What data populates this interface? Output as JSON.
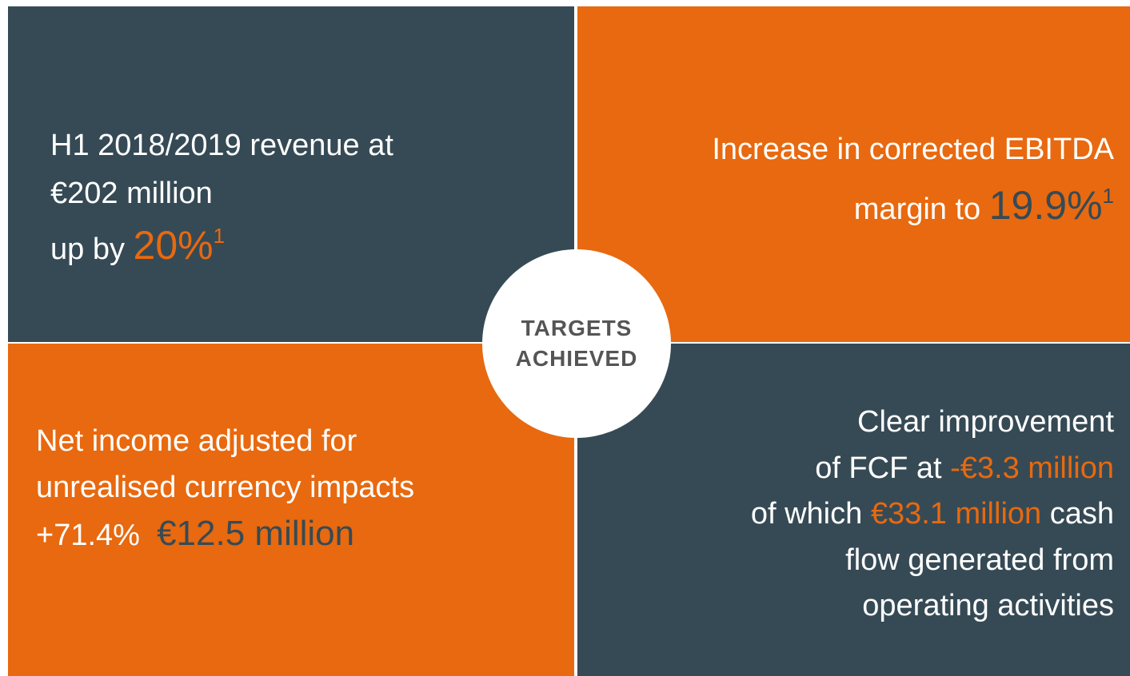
{
  "top_left": {
    "line1": "H1 2018/2019 revenue at",
    "line2": "€202 million",
    "line3": "up by",
    "highlight": "20%",
    "footnote": "1"
  },
  "top_right": {
    "line1": "Increase in corrected EBITDA",
    "line2": "margin to",
    "highlight": "19.9%",
    "footnote": "1"
  },
  "bottom_left": {
    "line1": "Net income adjusted for",
    "line2": "unrealised currency impacts",
    "line3": "+71.4%",
    "highlight": "€12.5 million"
  },
  "bottom_right": {
    "line1": "Clear improvement",
    "line2": "of FCF at",
    "highlight1": "-€3.3 million",
    "line3_start": "of which",
    "highlight2": "€33.1 million",
    "line3_end": "cash",
    "line4": "flow generated from",
    "line5": "operating activities"
  },
  "center": {
    "line1": "TARGETS",
    "line2": "ACHIEVED"
  }
}
